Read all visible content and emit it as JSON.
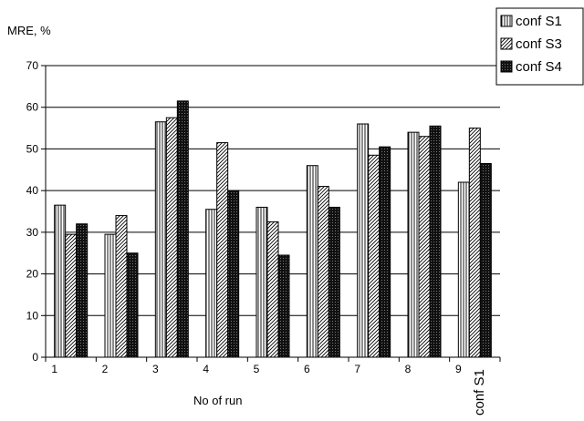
{
  "chart_data": {
    "type": "bar",
    "title": "",
    "ylabel": "MRE, %",
    "xlabel": "No of run",
    "ylim": [
      0,
      70
    ],
    "yticks": [
      0,
      10,
      20,
      30,
      40,
      50,
      60,
      70
    ],
    "grid": true,
    "legend_position": "top-right",
    "categories": [
      "1",
      "2",
      "3",
      "4",
      "5",
      "6",
      "7",
      "8",
      "9"
    ],
    "series": [
      {
        "name": "conf S1",
        "pattern": "vertical-lines",
        "values": [
          36.5,
          29.5,
          56.5,
          35.5,
          36,
          46,
          56,
          54,
          42
        ]
      },
      {
        "name": "conf S3",
        "pattern": "diagonal-hatch",
        "values": [
          29.5,
          34,
          57.5,
          51.5,
          32.5,
          41,
          48.5,
          53,
          55
        ]
      },
      {
        "name": "conf S4",
        "pattern": "dark-dotted",
        "values": [
          32,
          25,
          61.5,
          40,
          24.5,
          36,
          50.5,
          55.5,
          46.5
        ]
      }
    ],
    "annotations": [
      "conf S1"
    ],
    "colors": {
      "s1": "#ffffff",
      "s3": "#ffffff",
      "s4": "#1a1a1a",
      "grid": "#000000"
    }
  }
}
